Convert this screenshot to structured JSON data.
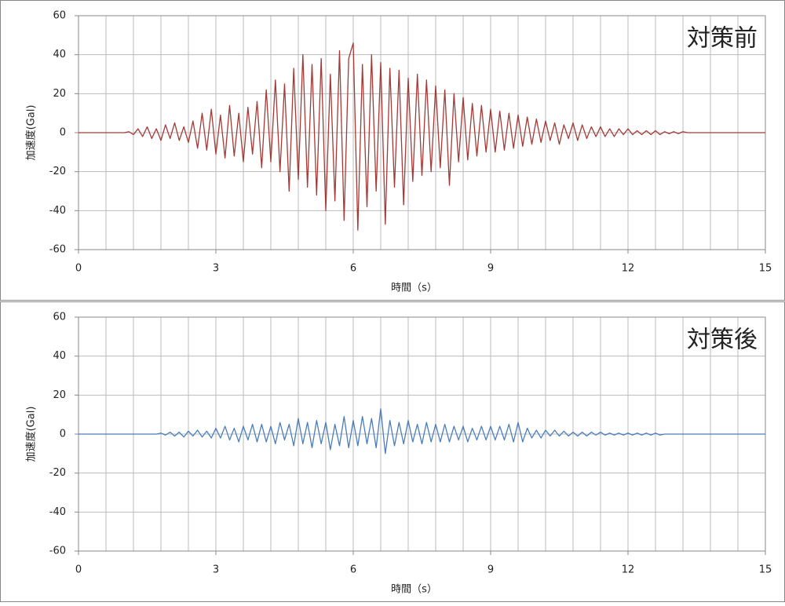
{
  "chart_data": [
    {
      "type": "line",
      "title": "対策前",
      "xlabel": "時間（s）",
      "ylabel": "加速度(Gal)",
      "x": [
        0,
        0.1,
        0.2,
        0.3,
        0.4,
        0.5,
        0.6,
        0.7,
        0.8,
        0.9,
        1,
        1.1,
        1.2,
        1.3,
        1.4,
        1.5,
        1.6,
        1.7,
        1.8,
        1.9,
        2,
        2.1,
        2.2,
        2.3,
        2.4,
        2.5,
        2.6,
        2.7,
        2.8,
        2.9,
        3,
        3.1,
        3.2,
        3.3,
        3.4,
        3.5,
        3.6,
        3.7,
        3.8,
        3.9,
        4,
        4.1,
        4.2,
        4.3,
        4.4,
        4.5,
        4.6,
        4.7,
        4.8,
        4.9,
        5,
        5.1,
        5.2,
        5.3,
        5.4,
        5.5,
        5.6,
        5.7,
        5.8,
        5.9,
        6,
        6.1,
        6.2,
        6.3,
        6.4,
        6.5,
        6.6,
        6.7,
        6.8,
        6.9,
        7,
        7.1,
        7.2,
        7.3,
        7.4,
        7.5,
        7.6,
        7.7,
        7.8,
        7.9,
        8,
        8.1,
        8.2,
        8.3,
        8.4,
        8.5,
        8.6,
        8.7,
        8.8,
        8.9,
        9,
        9.1,
        9.2,
        9.3,
        9.4,
        9.5,
        9.6,
        9.7,
        9.8,
        9.9,
        10,
        10.1,
        10.2,
        10.3,
        10.4,
        10.5,
        10.6,
        10.7,
        10.8,
        10.9,
        11,
        11.1,
        11.2,
        11.3,
        11.4,
        11.5,
        11.6,
        11.7,
        11.8,
        11.9,
        12,
        12.1,
        12.2,
        12.3,
        12.4,
        12.5,
        12.6,
        12.7,
        12.8,
        12.9,
        13,
        13.1,
        13.2,
        13.3,
        13.4,
        13.5,
        13.6,
        13.7,
        13.8,
        13.9,
        14,
        14.1,
        14.2,
        14.3,
        14.4,
        14.5,
        14.6,
        14.7,
        14.8,
        14.9,
        15
      ],
      "series": [
        {
          "color": "#a33a36",
          "values": [
            0,
            0,
            0,
            0,
            0,
            0,
            0,
            0,
            0,
            0,
            0,
            0.5,
            -1,
            2,
            -2,
            3,
            -3,
            2,
            -4,
            4,
            -3,
            5,
            -4,
            3,
            -5,
            6,
            -8,
            10,
            -9,
            12,
            -11,
            9,
            -13,
            14,
            -12,
            10,
            -15,
            13,
            -11,
            16,
            -18,
            22,
            -15,
            27,
            -20,
            25,
            -30,
            33,
            -24,
            40,
            -28,
            35,
            -32,
            38,
            -40,
            30,
            -35,
            42,
            -45,
            38,
            46,
            -50,
            35,
            -38,
            40,
            -30,
            36,
            -47,
            33,
            -28,
            32,
            -37,
            28,
            -25,
            30,
            -22,
            27,
            -20,
            24,
            -18,
            22,
            -27,
            20,
            -15,
            18,
            -14,
            15,
            -12,
            14,
            -10,
            12,
            -10,
            11,
            -9,
            10,
            -8,
            9,
            -7,
            8,
            -6,
            7,
            -5,
            6,
            -4,
            5,
            -6,
            4,
            -3,
            5,
            -4,
            4,
            -3,
            3,
            -2,
            3,
            -2,
            2,
            -2,
            2,
            -1,
            2,
            -1,
            1,
            -1,
            1,
            -1,
            1,
            -1,
            0.5,
            -0.5,
            0.5,
            -0.5,
            0.5,
            0,
            0,
            0,
            0,
            0,
            0,
            0,
            0,
            0,
            0,
            0,
            0,
            0,
            0,
            0,
            0,
            0,
            0
          ]
        }
      ],
      "xlim": [
        0,
        15
      ],
      "xticks": [
        0,
        3,
        6,
        9,
        12,
        15
      ],
      "x_grid_step": 0.6,
      "ylim": [
        -60,
        60
      ],
      "yticks": [
        -60,
        -40,
        -20,
        0,
        20,
        40,
        60
      ],
      "grid": true
    },
    {
      "type": "line",
      "title": "対策後",
      "xlabel": "時間（s）",
      "ylabel": "加速度(Gal)",
      "x": [
        0,
        0.1,
        0.2,
        0.3,
        0.4,
        0.5,
        0.6,
        0.7,
        0.8,
        0.9,
        1,
        1.1,
        1.2,
        1.3,
        1.4,
        1.5,
        1.6,
        1.7,
        1.8,
        1.9,
        2,
        2.1,
        2.2,
        2.3,
        2.4,
        2.5,
        2.6,
        2.7,
        2.8,
        2.9,
        3,
        3.1,
        3.2,
        3.3,
        3.4,
        3.5,
        3.6,
        3.7,
        3.8,
        3.9,
        4,
        4.1,
        4.2,
        4.3,
        4.4,
        4.5,
        4.6,
        4.7,
        4.8,
        4.9,
        5,
        5.1,
        5.2,
        5.3,
        5.4,
        5.5,
        5.6,
        5.7,
        5.8,
        5.9,
        6,
        6.1,
        6.2,
        6.3,
        6.4,
        6.5,
        6.6,
        6.7,
        6.8,
        6.9,
        7,
        7.1,
        7.2,
        7.3,
        7.4,
        7.5,
        7.6,
        7.7,
        7.8,
        7.9,
        8,
        8.1,
        8.2,
        8.3,
        8.4,
        8.5,
        8.6,
        8.7,
        8.8,
        8.9,
        9,
        9.1,
        9.2,
        9.3,
        9.4,
        9.5,
        9.6,
        9.7,
        9.8,
        9.9,
        10,
        10.1,
        10.2,
        10.3,
        10.4,
        10.5,
        10.6,
        10.7,
        10.8,
        10.9,
        11,
        11.1,
        11.2,
        11.3,
        11.4,
        11.5,
        11.6,
        11.7,
        11.8,
        11.9,
        12,
        12.1,
        12.2,
        12.3,
        12.4,
        12.5,
        12.6,
        12.7,
        12.8,
        12.9,
        13,
        13.1,
        13.2,
        13.3,
        13.4,
        13.5,
        13.6,
        13.7,
        13.8,
        13.9,
        14,
        14.1,
        14.2,
        14.3,
        14.4,
        14.5,
        14.6,
        14.7,
        14.8,
        14.9,
        15
      ],
      "series": [
        {
          "color": "#4a7ebb",
          "values": [
            0,
            0,
            0,
            0,
            0,
            0,
            0,
            0,
            0,
            0,
            0,
            0,
            0,
            0,
            0,
            0,
            0,
            0,
            0.5,
            -0.5,
            1,
            -1,
            1,
            -1.5,
            1.5,
            -1,
            2,
            -1.5,
            1.5,
            -2,
            3,
            -2,
            4,
            -3,
            3,
            -4,
            4,
            -3,
            5,
            -4,
            5,
            -4,
            4,
            -5,
            6,
            -3,
            5,
            -6,
            8,
            -5,
            6,
            -7,
            7,
            -5,
            6,
            -8,
            5,
            -6,
            9,
            -7,
            7,
            -6,
            9,
            -5,
            8,
            -7,
            13,
            -10,
            7,
            -6,
            6,
            -5,
            7,
            -4,
            5,
            -5,
            6,
            -4,
            5,
            -4,
            5,
            -4,
            4,
            -3,
            4,
            -4,
            3,
            -3,
            4,
            -3,
            4,
            -3,
            4,
            -3,
            5,
            -4,
            6,
            -4,
            3,
            -2,
            2,
            -2,
            2,
            -1,
            2,
            -1,
            1.5,
            -1,
            1,
            -1,
            1,
            -1,
            1,
            -0.5,
            1,
            -0.5,
            0.5,
            -0.5,
            0.5,
            -0.5,
            0.5,
            -0.5,
            0.5,
            -0.5,
            0.5,
            -0.5,
            0.5,
            -0.5,
            0,
            0,
            0,
            0,
            0,
            0,
            0,
            0,
            0,
            0,
            0,
            0,
            0,
            0,
            0,
            0,
            0,
            0,
            0,
            0,
            0,
            0,
            0
          ]
        }
      ],
      "xlim": [
        0,
        15
      ],
      "xticks": [
        0,
        3,
        6,
        9,
        12,
        15
      ],
      "x_grid_step": 0.6,
      "ylim": [
        -60,
        60
      ],
      "yticks": [
        -60,
        -40,
        -20,
        0,
        20,
        40,
        60
      ],
      "grid": true
    }
  ]
}
